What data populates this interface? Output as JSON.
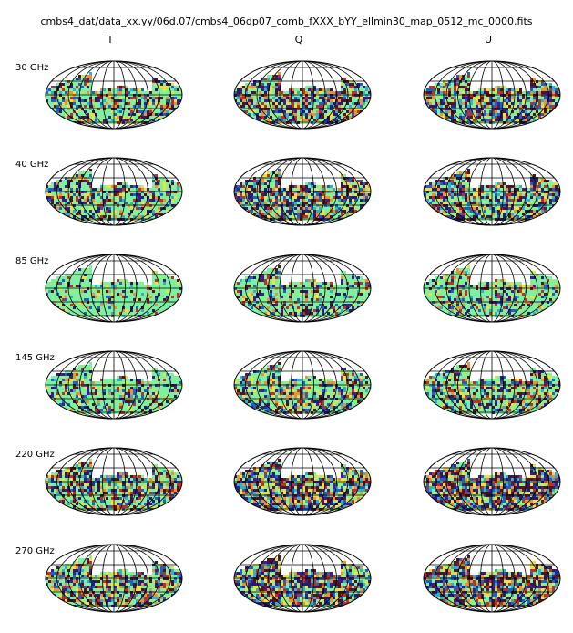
{
  "title": "cmbs4_dat/data_xx.yy/06d.07/cmbs4_06dp07_comb_fXXX_bYY_ellmin30_map_0512_mc_0000.fits",
  "columns": [
    "T",
    "Q",
    "U"
  ],
  "rows": [
    "30 GHz",
    "40 GHz",
    "85 GHz",
    "145 GHz",
    "220 GHz",
    "270 GHz"
  ],
  "colors": {
    "outline": "#000000",
    "noise_palette": [
      "#2a1a6e",
      "#3a1f8a",
      "#1f5fc8",
      "#2fb0d0",
      "#7ef0a0",
      "#9cf07a",
      "#f0e040",
      "#f09030",
      "#c03020",
      "#5a1010"
    ],
    "quiet_fill": "#7ef0a0"
  },
  "projection": "mollweide"
}
